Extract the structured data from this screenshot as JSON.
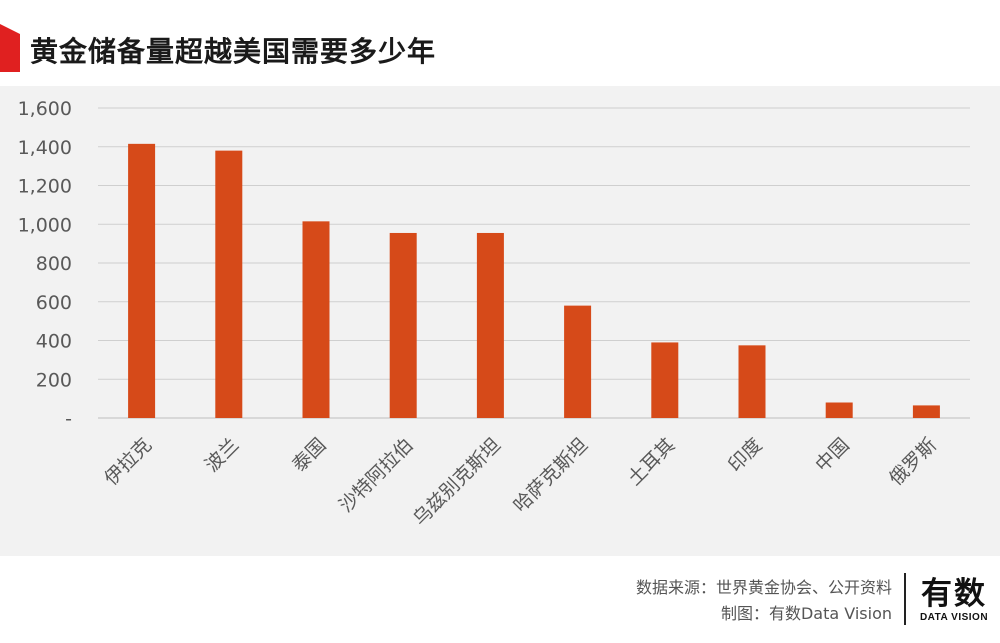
{
  "header": {
    "title": "黄金储备量超越美国需要多少年",
    "accent_color": "#e02020"
  },
  "footer": {
    "source": "数据来源：世界黄金协会、公开资料",
    "credit": "制图：有数Data Vision",
    "brand_logo_text": "有数",
    "brand_logo_sub": "DATA VISION"
  },
  "chart_data": {
    "type": "bar",
    "title": "黄金储备量超越美国需要多少年",
    "categories": [
      "伊拉克",
      "波兰",
      "泰国",
      "沙特阿拉伯",
      "乌兹别克斯坦",
      "哈萨克斯坦",
      "土耳其",
      "印度",
      "中国",
      "俄罗斯"
    ],
    "series": [
      {
        "values": [
          1415,
          1380,
          1015,
          955,
          955,
          580,
          390,
          375,
          80,
          65
        ]
      }
    ],
    "xlabel": "",
    "ylabel": "",
    "ylim": [
      0,
      1600
    ],
    "yticks": [
      0,
      200,
      400,
      600,
      800,
      1000,
      1200,
      1400,
      1600
    ],
    "ytick_labels": [
      "-",
      "200",
      "400",
      "600",
      "800",
      "1,000",
      "1,200",
      "1,400",
      "1,600"
    ],
    "grid": true,
    "bar_color": "#d64a19",
    "grid_color": "#cfcfcf",
    "axis_color": "#bfbfbf",
    "text_color": "#595959"
  }
}
